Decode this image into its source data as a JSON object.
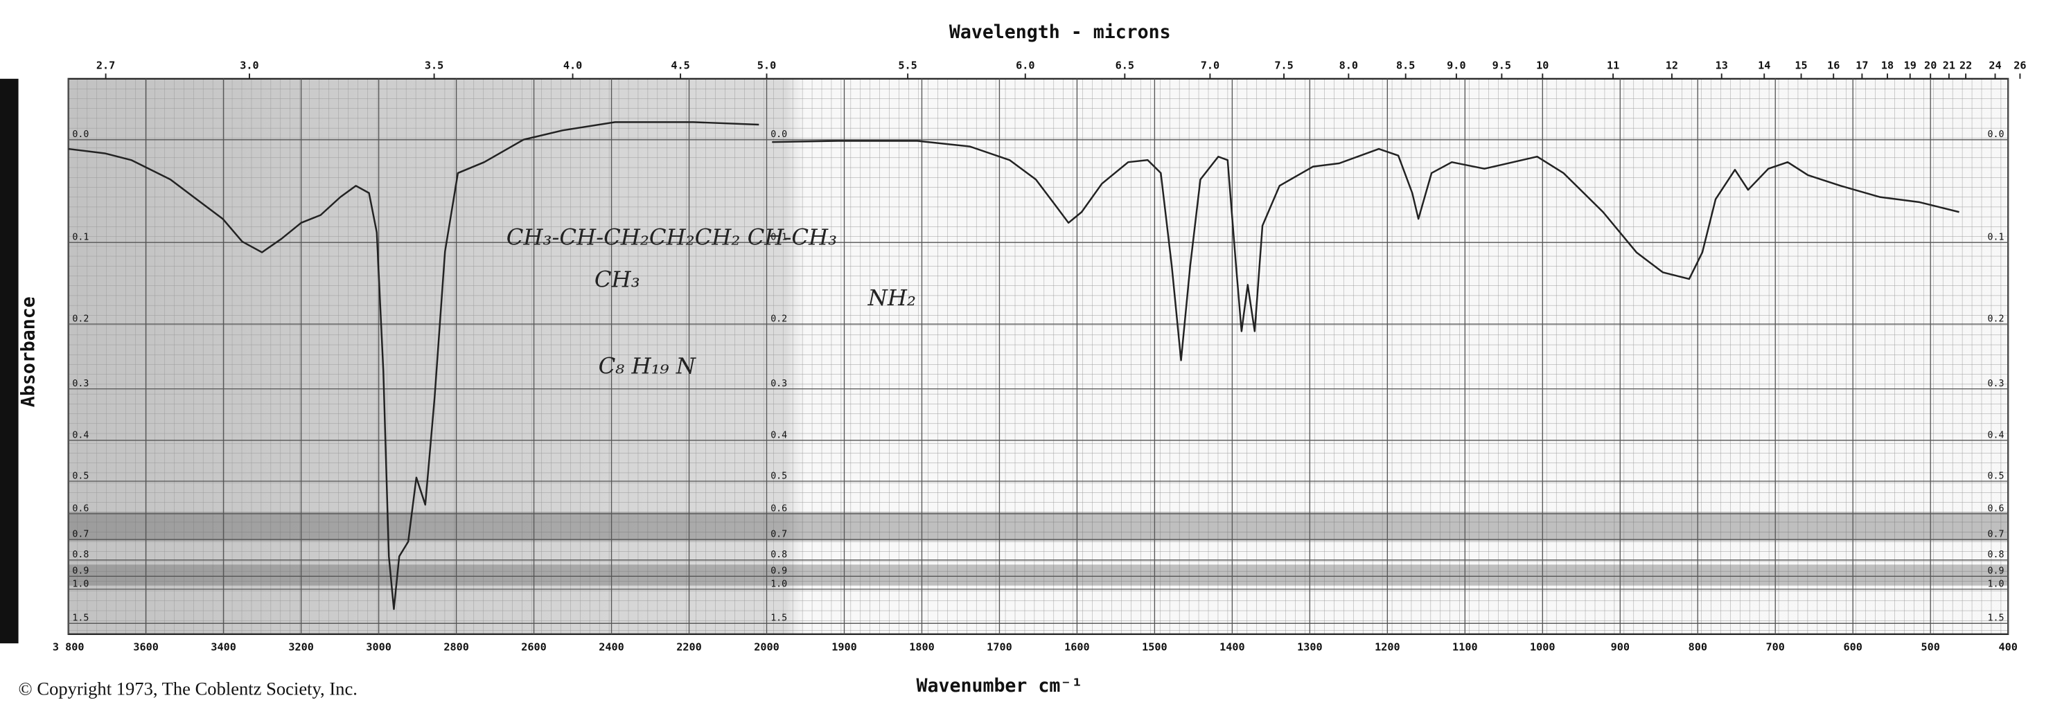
{
  "chart_data": {
    "type": "ir-spectrum",
    "title": "Wavelength - microns",
    "xlabel": "Wavenumber cm⁻¹",
    "ylabel": "Absorbance",
    "footer": "© Copyright 1973, The Coblentz Society, Inc.",
    "annotations": [
      "CH₃-CH-CH₂CH₂CH₂ CH-CH₃",
      "CH₃",
      "NH₂",
      "C₈ H₁₉ N"
    ],
    "xlim": [
      3800,
      400
    ],
    "xbreak": 2000,
    "xscale_ratio": 2,
    "xticks": [
      {
        "value": 3800,
        "label": "3 800"
      },
      3600,
      3400,
      3200,
      3000,
      2800,
      2600,
      2400,
      2200,
      2000,
      1900,
      1800,
      1700,
      1600,
      1500,
      1400,
      1300,
      1200,
      1100,
      1000,
      900,
      800,
      700,
      600,
      500,
      400
    ],
    "x2ticks": [
      2.7,
      {
        "value": 3,
        "label": "3.0"
      },
      3.5,
      {
        "value": 4,
        "label": "4.0"
      },
      4.5,
      {
        "value": 5,
        "label": "5.0"
      },
      5.5,
      {
        "value": 6,
        "label": "6.0"
      },
      6.5,
      {
        "value": 7,
        "label": "7.0"
      },
      7.5,
      {
        "value": 8,
        "label": "8.0"
      },
      8.5,
      {
        "value": 9,
        "label": "9.0"
      },
      9.5,
      10,
      11,
      12,
      13,
      14,
      15,
      16,
      17,
      18,
      19,
      20,
      21,
      22,
      24,
      26
    ],
    "yscale": "transmittance",
    "ylim": [
      -0.05,
      2
    ],
    "yticks": [
      {
        "value": 0,
        "label": "0.0"
      },
      0.1,
      0.2,
      0.3,
      0.4,
      0.5,
      0.6,
      0.7,
      0.8,
      0.9,
      {
        "value": 1,
        "label": "1.0"
      },
      1.5
    ],
    "grid": true,
    "color": "#222222",
    "x": [
      3800,
      3706,
      3638,
      3537,
      3470,
      3402,
      3352,
      3301,
      3251,
      3200,
      3150,
      3099,
      3059,
      3025,
      3005,
      2988,
      2974,
      2961,
      2947,
      2924,
      2903,
      2880,
      2856,
      2829,
      2796,
      2728,
      2627,
      2526,
      2391,
      2189,
      2020,
      2000,
      1993,
      1908,
      1806,
      1738,
      1687,
      1653,
      1628,
      1611,
      1594,
      1568,
      1534,
      1509,
      1492,
      1478,
      1466,
      1454,
      1441,
      1418,
      1406,
      1395,
      1388,
      1380,
      1371,
      1361,
      1339,
      1296,
      1262,
      1211,
      1186,
      1168,
      1160,
      1143,
      1117,
      1075,
      1007,
      973,
      922,
      879,
      845,
      811,
      794,
      777,
      752,
      735,
      709,
      684,
      658,
      616,
      565,
      514,
      463
    ],
    "values": [
      0.008,
      0.012,
      0.018,
      0.036,
      0.055,
      0.075,
      0.099,
      0.111,
      0.096,
      0.079,
      0.071,
      0.053,
      0.042,
      0.049,
      0.089,
      0.27,
      0.78,
      1.22,
      0.78,
      0.71,
      0.49,
      0.57,
      0.315,
      0.11,
      0.03,
      0.02,
      0,
      -0.008,
      -0.015,
      -0.015,
      -0.013,
      null,
      0.002,
      0.001,
      0.001,
      0.006,
      0.018,
      0.036,
      0.061,
      0.079,
      0.068,
      0.04,
      0.02,
      0.018,
      0.03,
      0.126,
      0.253,
      0.126,
      0.036,
      0.015,
      0.018,
      0.126,
      0.21,
      0.149,
      0.21,
      0.082,
      0.042,
      0.024,
      0.021,
      0.008,
      0.014,
      0.049,
      0.075,
      0.03,
      0.02,
      0.026,
      0.015,
      0.03,
      0.068,
      0.111,
      0.134,
      0.142,
      0.111,
      0.055,
      0.027,
      0.046,
      0.026,
      0.02,
      0.032,
      0.042,
      0.053,
      0.058,
      0.068
    ]
  }
}
